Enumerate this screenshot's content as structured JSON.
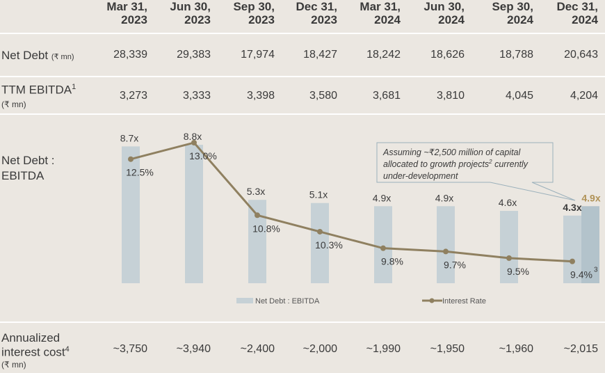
{
  "columns": [
    "Mar 31, 2023",
    "Jun 30, 2023",
    "Sep 30, 2023",
    "Dec 31, 2023",
    "Mar 31, 2024",
    "Jun 30, 2024",
    "Sep 30, 2024",
    "Dec 31, 2024"
  ],
  "header_lines": [
    [
      "Mar 31,",
      "2023"
    ],
    [
      "Jun 30,",
      "2023"
    ],
    [
      "Sep 30,",
      "2023"
    ],
    [
      "Dec 31,",
      "2023"
    ],
    [
      "Mar 31,",
      "2024"
    ],
    [
      "Jun 30,",
      "2024"
    ],
    [
      "Sep 30,",
      "2024"
    ],
    [
      "Dec 31,",
      "2024"
    ]
  ],
  "rows": {
    "net_debt": {
      "label": "Net Debt",
      "unit": "(₹ mn)",
      "values": [
        "28,339",
        "29,383",
        "17,974",
        "18,427",
        "18,242",
        "18,626",
        "18,788",
        "20,643"
      ]
    },
    "ttm_ebitda": {
      "label": "TTM EBITDA",
      "sup": "1",
      "unit": "(₹ mn)",
      "values": [
        "3,273",
        "3,333",
        "3,398",
        "3,580",
        "3,681",
        "3,810",
        "4,045",
        "4,204"
      ]
    },
    "interest_cost": {
      "label_line1": "Annualized",
      "label_line2": "interest cost",
      "sup": "4",
      "unit": "(₹ mn)",
      "values": [
        "~3,750",
        "~3,940",
        "~2,400",
        "~2,000",
        "~1,990",
        "~1,950",
        "~1,960",
        "~2,015"
      ]
    }
  },
  "chart_label": {
    "line1": "Net Debt :",
    "line2": "EBITDA"
  },
  "chart_data": {
    "type": "bar",
    "categories": [
      "Mar 31, 2023",
      "Jun 30, 2023",
      "Sep 30, 2023",
      "Dec 31, 2023",
      "Mar 31, 2024",
      "Jun 30, 2024",
      "Sep 30, 2024",
      "Dec 31, 2024"
    ],
    "series": [
      {
        "name": "Net Debt : EBITDA",
        "kind": "bar",
        "values": [
          8.7,
          8.8,
          5.3,
          5.1,
          4.9,
          4.9,
          4.6,
          4.3
        ],
        "labels": [
          "8.7x",
          "8.8x",
          "5.3x",
          "5.1x",
          "4.9x",
          "4.9x",
          "4.6x",
          "4.3x"
        ]
      },
      {
        "name": "Interest Rate",
        "kind": "line",
        "values": [
          12.5,
          13.0,
          10.8,
          10.3,
          9.8,
          9.7,
          9.5,
          9.4
        ],
        "labels": [
          "12.5%",
          "13.0%",
          "10.8%",
          "10.3%",
          "9.8%",
          "9.7%",
          "9.5%",
          "9.4%"
        ]
      }
    ],
    "adjusted_bar": {
      "category": "Dec 31, 2024",
      "value": 4.9,
      "label": "4.9x"
    },
    "last_point_sup": "3",
    "annotation": {
      "line1": "Assuming ~₹2,500 million of capital",
      "line2": "allocated to growth projects",
      "line2_sup": "2",
      "line2_tail": " currently",
      "line3": "under-development"
    },
    "legend": [
      "Net Debt : EBITDA",
      "Interest Rate"
    ],
    "legend_position": "bottom-center",
    "colors": {
      "bar": "#c6d1d6",
      "bar_adjusted": "#b3c3cb",
      "line": "#8f8060",
      "adjusted_label": "#b09256"
    }
  }
}
